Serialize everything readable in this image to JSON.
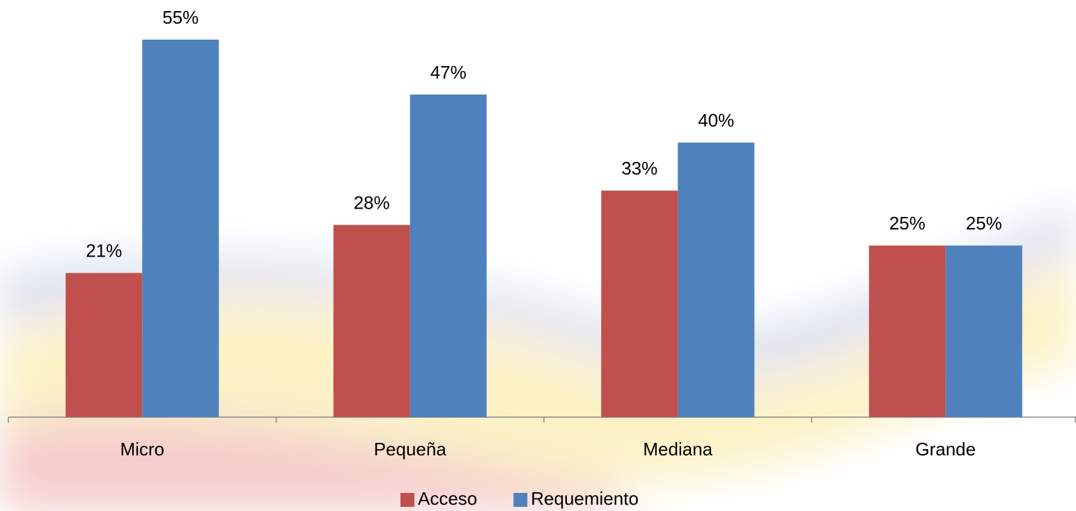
{
  "chart_data": {
    "type": "bar",
    "categories": [
      "Micro",
      "Pequeña",
      "Mediana",
      "Grande"
    ],
    "series": [
      {
        "name": "Acceso",
        "color": "#c0504d",
        "values": [
          21,
          28,
          33,
          25
        ],
        "value_labels": [
          "21%",
          "28%",
          "33%",
          "25%"
        ]
      },
      {
        "name": "Requemiento",
        "color": "#4f81bd",
        "values": [
          55,
          47,
          40,
          25
        ],
        "value_labels": [
          "55%",
          "47%",
          "40%",
          "25%"
        ]
      }
    ],
    "legend": "bottom"
  }
}
